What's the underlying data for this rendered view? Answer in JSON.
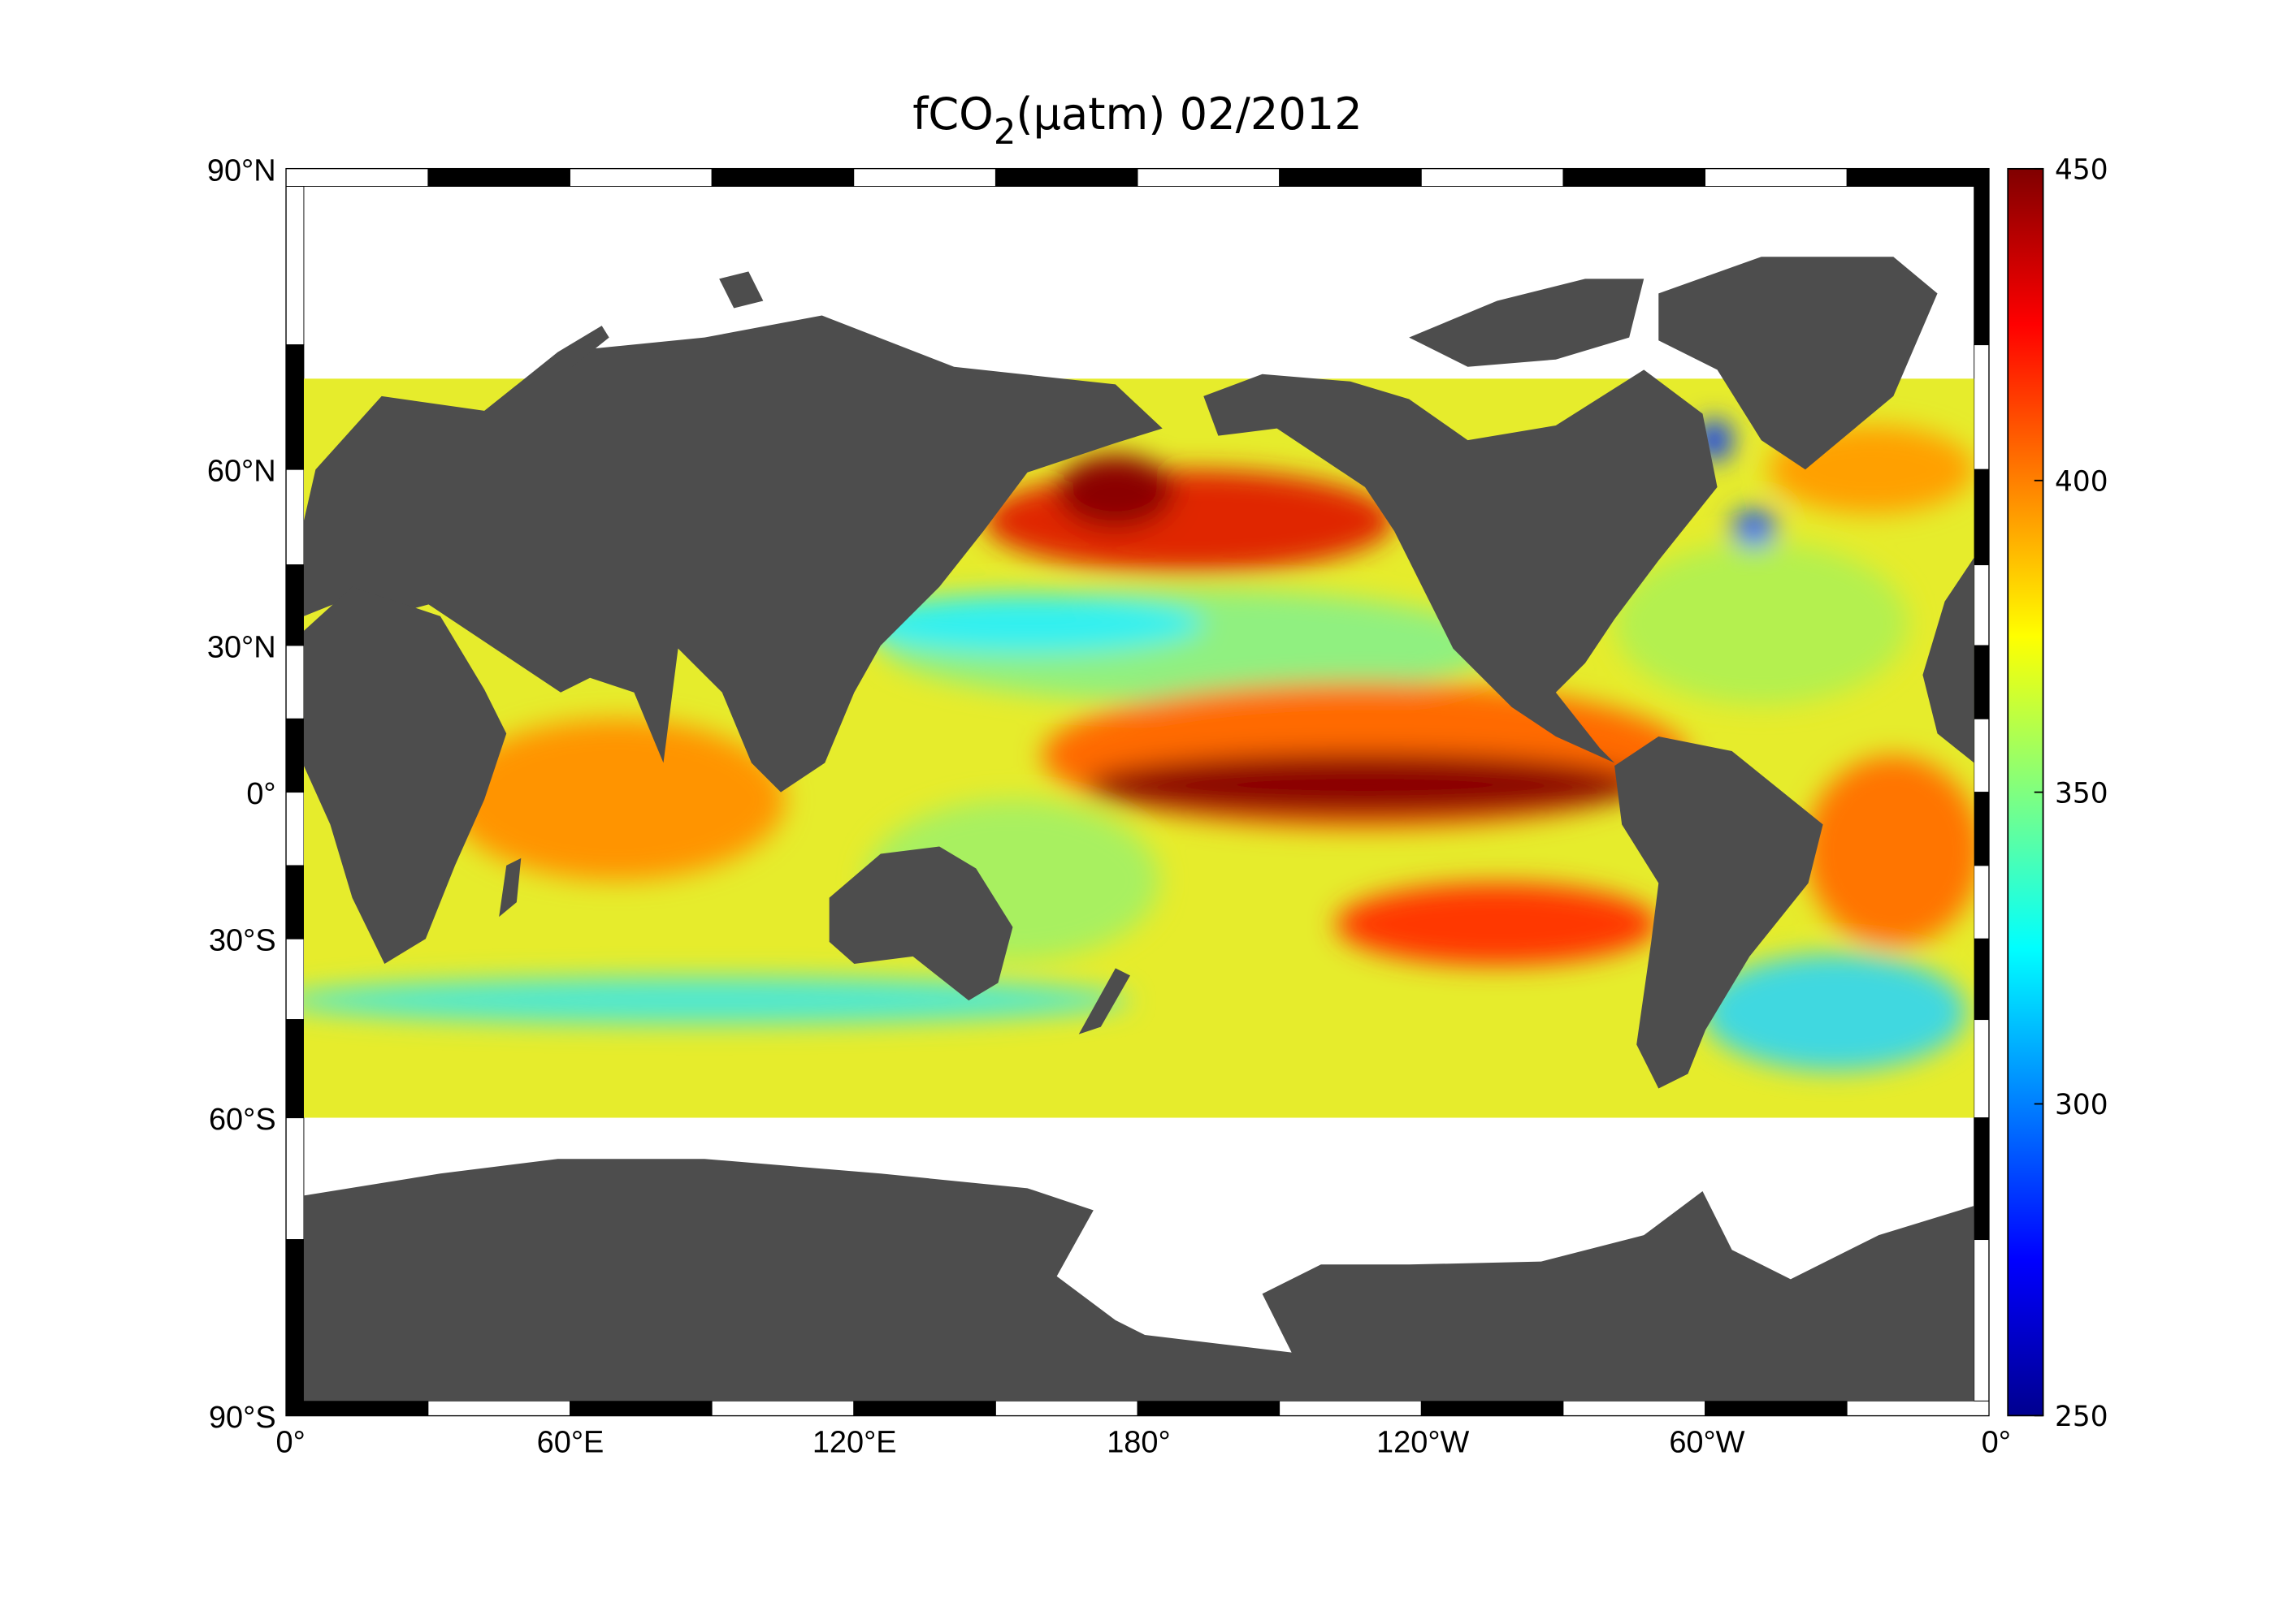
{
  "chart_data": {
    "type": "heatmap",
    "title": {
      "main": "fCO",
      "subscript": "2",
      "rest": "(µatm)  02/2012"
    },
    "variable": "fCO2",
    "units": "µatm",
    "date": "02/2012",
    "projection": "global map, 0° to 360° longitude",
    "x_ticks": [
      "0°",
      "60°E",
      "120°E",
      "180°",
      "120°W",
      "60°W",
      "0°"
    ],
    "y_ticks": [
      "90°N",
      "60°N",
      "30°N",
      "0°",
      "30°S",
      "60°S",
      "90°S"
    ],
    "data_coverage_lat": [
      "72°N",
      "60°S"
    ],
    "colorbar": {
      "colormap": "jet",
      "range": [
        250,
        450
      ],
      "ticks": [
        "250",
        "300",
        "350",
        "400",
        "450"
      ]
    },
    "colors": {
      "land": "#4d4d4d",
      "no_data": "#ffffff"
    },
    "features": [
      {
        "region": "Equatorial Pacific",
        "approx_value": 450
      },
      {
        "region": "North Pacific (Bering/Gulf of Alaska)",
        "approx_value": 430
      },
      {
        "region": "North Pacific subtropical band",
        "approx_value": 330
      },
      {
        "region": "Southern Ocean band",
        "approx_value": 340
      },
      {
        "region": "Labrador Sea",
        "approx_value": 280
      },
      {
        "region": "Indian Ocean",
        "approx_value": 400
      }
    ]
  }
}
